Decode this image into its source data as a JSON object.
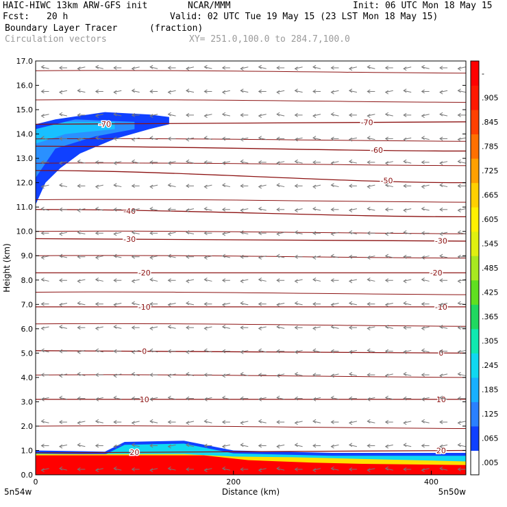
{
  "header": {
    "model": "HAIC-HIWC 13km ARW-GFS init",
    "org": "NCAR/MMM",
    "init": "Init: 06 UTC Mon 18 May 15",
    "fcst_label": "Fcst:",
    "fcst_value": "20 h",
    "valid": "Valid: 02 UTC Tue 19 May 15 (23 LST Mon 18 May 15)",
    "field": "Boundary Layer Tracer",
    "field_units": "(fraction)",
    "overlay": "Circulation vectors",
    "xy": "XY= 251.0,100.0 to 284.7,100.0"
  },
  "chart_data": {
    "type": "heatmap",
    "xlabel": "Distance (km)",
    "ylabel": "Height (km)",
    "xlim": [
      0,
      435
    ],
    "ylim": [
      0,
      17
    ],
    "x_ticks": [
      "0",
      "200",
      "400"
    ],
    "y_ticks": [
      "0.0",
      "1.0",
      "2.0",
      "3.0",
      "4.0",
      "5.0",
      "6.0",
      "7.0",
      "8.0",
      "9.0",
      "10.0",
      "11.0",
      "12.0",
      "13.0",
      "14.0",
      "15.0",
      "16.0",
      "17.0"
    ],
    "x_endpoints": {
      "left": "5n54w",
      "right": "5n50w"
    },
    "colorbar": {
      "labels": [
        ".005",
        ".065",
        ".125",
        ".185",
        ".245",
        ".305",
        ".365",
        ".425",
        ".485",
        ".545",
        ".605",
        ".665",
        ".725",
        ".785",
        ".845",
        ".905",
        "-"
      ],
      "colors": [
        "#ffffff",
        "#1040ff",
        "#2a80ff",
        "#18b0ff",
        "#10d8f0",
        "#10e8b0",
        "#20d860",
        "#60e020",
        "#a8e820",
        "#e0f010",
        "#fff000",
        "#ffd000",
        "#ffa000",
        "#ff7000",
        "#ff4000",
        "#ff1800",
        "#ff0000"
      ]
    },
    "temperature_contours": [
      {
        "label": "-70",
        "y_left": 14.4,
        "y_right": 14.5,
        "label_x": [
          70,
          335
        ]
      },
      {
        "label": "-60",
        "y_left": 13.5,
        "y_right": 13.3,
        "label_x": [
          345
        ]
      },
      {
        "label": "-50",
        "y_left": 12.5,
        "y_right": 12.0,
        "label_x": [
          355
        ]
      },
      {
        "label": "-40",
        "y_left": 10.9,
        "y_right": 10.6,
        "label_x": [
          95
        ]
      },
      {
        "label": "-30",
        "y_left": 9.7,
        "y_right": 9.6,
        "label_x": [
          95,
          410
        ]
      },
      {
        "label": "-20",
        "y_left": 8.3,
        "y_right": 8.3,
        "label_x": [
          110,
          405
        ]
      },
      {
        "label": "-10",
        "y_left": 6.9,
        "y_right": 6.9,
        "label_x": [
          110,
          410
        ]
      },
      {
        "label": "0",
        "y_left": 5.1,
        "y_right": 5.0,
        "label_x": [
          110,
          410
        ]
      },
      {
        "label": "10",
        "y_left": 3.1,
        "y_right": 3.1,
        "label_x": [
          110,
          410
        ]
      },
      {
        "label": "20",
        "y_left": 0.9,
        "y_right": 1.0,
        "label_x": [
          100,
          410
        ]
      }
    ],
    "plain_contour_levels": [
      16.6,
      15.4,
      13.8,
      12.8,
      11.3,
      10.0,
      9.0,
      7.5,
      6.2,
      4.1,
      2.0
    ],
    "tracer_upper_region": {
      "outline": [
        [
          0,
          11.1
        ],
        [
          10,
          12.0
        ],
        [
          25,
          12.6
        ],
        [
          45,
          13.2
        ],
        [
          80,
          13.8
        ],
        [
          115,
          14.2
        ],
        [
          135,
          14.4
        ],
        [
          135,
          14.7
        ],
        [
          115,
          14.8
        ],
        [
          70,
          14.9
        ],
        [
          20,
          14.6
        ],
        [
          0,
          14.4
        ]
      ],
      "core": [
        [
          0,
          12.2
        ],
        [
          20,
          13.4
        ],
        [
          60,
          13.9
        ],
        [
          100,
          14.2
        ],
        [
          100,
          14.5
        ],
        [
          40,
          14.6
        ],
        [
          0,
          14.2
        ]
      ]
    },
    "tracer_boundary_layer": {
      "top_height_km": [
        [
          0,
          1.0
        ],
        [
          70,
          0.95
        ],
        [
          90,
          1.35
        ],
        [
          150,
          1.4
        ],
        [
          200,
          1.0
        ],
        [
          300,
          0.9
        ],
        [
          435,
          0.9
        ]
      ]
    },
    "vectors": {
      "direction": "westward",
      "columns": 24,
      "rows": 18
    }
  }
}
